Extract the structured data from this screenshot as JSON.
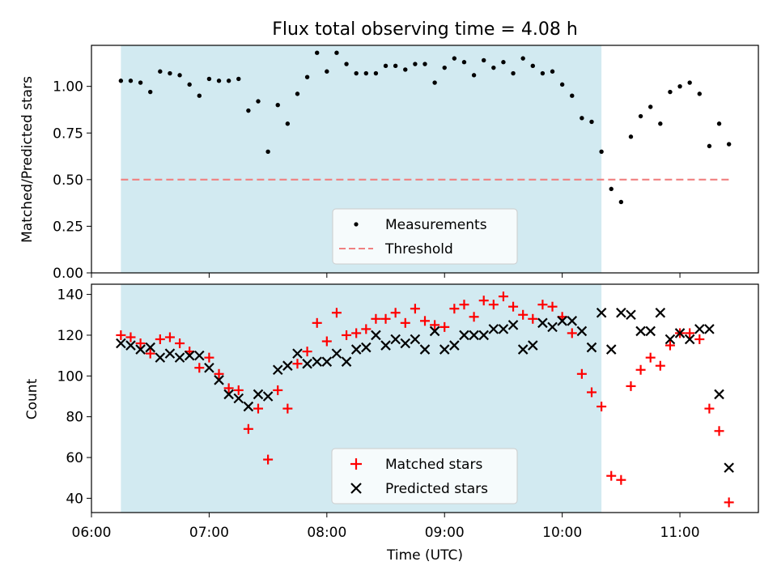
{
  "chart_data": [
    {
      "type": "scatter",
      "title": "Flux total observing time = 4.08 h",
      "xlabel": "",
      "ylabel": "Matched/Predicted stars",
      "ylim": [
        0.0,
        1.22
      ],
      "yticks": [
        "0.00",
        "0.25",
        "0.50",
        "0.75",
        "1.00"
      ],
      "shaded_interval": [
        "06:15",
        "10:20"
      ],
      "shaded_color": "#add8e6",
      "threshold": {
        "name": "Threshold",
        "value": 0.5,
        "x_start": "06:15",
        "x_end": "11:25",
        "color": "#f08080",
        "style": "dashed"
      },
      "legend": {
        "placement": "lower center",
        "entries": [
          "Measurements",
          "Threshold"
        ]
      },
      "series": [
        {
          "name": "Measurements",
          "marker": "dot",
          "color": "#000000",
          "points": [
            [
              "06:15",
              1.03
            ],
            [
              "06:20",
              1.03
            ],
            [
              "06:25",
              1.02
            ],
            [
              "06:30",
              0.97
            ],
            [
              "06:35",
              1.08
            ],
            [
              "06:40",
              1.07
            ],
            [
              "06:45",
              1.06
            ],
            [
              "06:50",
              1.01
            ],
            [
              "06:55",
              0.95
            ],
            [
              "07:00",
              1.04
            ],
            [
              "07:05",
              1.03
            ],
            [
              "07:10",
              1.03
            ],
            [
              "07:15",
              1.04
            ],
            [
              "07:20",
              0.87
            ],
            [
              "07:25",
              0.92
            ],
            [
              "07:30",
              0.65
            ],
            [
              "07:35",
              0.9
            ],
            [
              "07:40",
              0.8
            ],
            [
              "07:45",
              0.96
            ],
            [
              "07:50",
              1.05
            ],
            [
              "07:55",
              1.18
            ],
            [
              "08:00",
              1.08
            ],
            [
              "08:05",
              1.18
            ],
            [
              "08:10",
              1.12
            ],
            [
              "08:15",
              1.07
            ],
            [
              "08:20",
              1.07
            ],
            [
              "08:25",
              1.07
            ],
            [
              "08:30",
              1.11
            ],
            [
              "08:35",
              1.11
            ],
            [
              "08:40",
              1.09
            ],
            [
              "08:45",
              1.12
            ],
            [
              "08:50",
              1.12
            ],
            [
              "08:55",
              1.02
            ],
            [
              "09:00",
              1.1
            ],
            [
              "09:05",
              1.15
            ],
            [
              "09:10",
              1.13
            ],
            [
              "09:15",
              1.06
            ],
            [
              "09:20",
              1.14
            ],
            [
              "09:25",
              1.1
            ],
            [
              "09:30",
              1.13
            ],
            [
              "09:35",
              1.07
            ],
            [
              "09:40",
              1.15
            ],
            [
              "09:45",
              1.11
            ],
            [
              "09:50",
              1.07
            ],
            [
              "09:55",
              1.08
            ],
            [
              "10:00",
              1.01
            ],
            [
              "10:05",
              0.95
            ],
            [
              "10:10",
              0.83
            ],
            [
              "10:15",
              0.81
            ],
            [
              "10:20",
              0.65
            ],
            [
              "10:25",
              0.45
            ],
            [
              "10:30",
              0.38
            ],
            [
              "10:35",
              0.73
            ],
            [
              "10:40",
              0.84
            ],
            [
              "10:45",
              0.89
            ],
            [
              "10:50",
              0.8
            ],
            [
              "10:55",
              0.97
            ],
            [
              "11:00",
              1.0
            ],
            [
              "11:05",
              1.02
            ],
            [
              "11:10",
              0.96
            ],
            [
              "11:15",
              0.68
            ],
            [
              "11:20",
              0.8
            ],
            [
              "11:25",
              0.69
            ]
          ]
        }
      ]
    },
    {
      "type": "scatter",
      "title": "",
      "xlabel": "Time (UTC)",
      "ylabel": "Count",
      "ylim": [
        33,
        145
      ],
      "yticks": [
        "40",
        "60",
        "80",
        "100",
        "120",
        "140"
      ],
      "x_range": [
        "06:00",
        "11:40"
      ],
      "xticks": [
        "06:00",
        "07:00",
        "08:00",
        "09:00",
        "10:00",
        "11:00"
      ],
      "shaded_interval": [
        "06:15",
        "10:20"
      ],
      "shaded_color": "#add8e6",
      "legend": {
        "placement": "lower center",
        "entries": [
          "Matched stars",
          "Predicted stars"
        ]
      },
      "series": [
        {
          "name": "Matched stars",
          "marker": "plus",
          "color": "#ff0000",
          "points": [
            [
              "06:15",
              120
            ],
            [
              "06:20",
              119
            ],
            [
              "06:25",
              116
            ],
            [
              "06:30",
              111
            ],
            [
              "06:35",
              118
            ],
            [
              "06:40",
              119
            ],
            [
              "06:45",
              116
            ],
            [
              "06:50",
              112
            ],
            [
              "06:55",
              104
            ],
            [
              "07:00",
              109
            ],
            [
              "07:05",
              101
            ],
            [
              "07:10",
              94
            ],
            [
              "07:15",
              93
            ],
            [
              "07:20",
              74
            ],
            [
              "07:25",
              84
            ],
            [
              "07:30",
              59
            ],
            [
              "07:35",
              93
            ],
            [
              "07:40",
              84
            ],
            [
              "07:45",
              106
            ],
            [
              "07:50",
              112
            ],
            [
              "07:55",
              126
            ],
            [
              "08:00",
              117
            ],
            [
              "08:05",
              131
            ],
            [
              "08:10",
              120
            ],
            [
              "08:15",
              121
            ],
            [
              "08:20",
              123
            ],
            [
              "08:25",
              128
            ],
            [
              "08:30",
              128
            ],
            [
              "08:35",
              131
            ],
            [
              "08:40",
              126
            ],
            [
              "08:45",
              133
            ],
            [
              "08:50",
              127
            ],
            [
              "08:55",
              125
            ],
            [
              "09:00",
              124
            ],
            [
              "09:05",
              133
            ],
            [
              "09:10",
              135
            ],
            [
              "09:15",
              129
            ],
            [
              "09:20",
              137
            ],
            [
              "09:25",
              135
            ],
            [
              "09:30",
              139
            ],
            [
              "09:35",
              134
            ],
            [
              "09:40",
              130
            ],
            [
              "09:45",
              128
            ],
            [
              "09:50",
              135
            ],
            [
              "09:55",
              134
            ],
            [
              "10:00",
              129
            ],
            [
              "10:05",
              121
            ],
            [
              "10:10",
              101
            ],
            [
              "10:15",
              92
            ],
            [
              "10:20",
              85
            ],
            [
              "10:25",
              51
            ],
            [
              "10:30",
              49
            ],
            [
              "10:35",
              95
            ],
            [
              "10:40",
              103
            ],
            [
              "10:45",
              109
            ],
            [
              "10:50",
              105
            ],
            [
              "10:55",
              115
            ],
            [
              "11:00",
              121
            ],
            [
              "11:05",
              121
            ],
            [
              "11:10",
              118
            ],
            [
              "11:15",
              84
            ],
            [
              "11:20",
              73
            ],
            [
              "11:25",
              38
            ]
          ]
        },
        {
          "name": "Predicted stars",
          "marker": "x",
          "color": "#000000",
          "points": [
            [
              "06:15",
              116
            ],
            [
              "06:20",
              115
            ],
            [
              "06:25",
              113
            ],
            [
              "06:30",
              114
            ],
            [
              "06:35",
              109
            ],
            [
              "06:40",
              111
            ],
            [
              "06:45",
              109
            ],
            [
              "06:50",
              110
            ],
            [
              "06:55",
              110
            ],
            [
              "07:00",
              104
            ],
            [
              "07:05",
              98
            ],
            [
              "07:10",
              91
            ],
            [
              "07:15",
              89
            ],
            [
              "07:20",
              85
            ],
            [
              "07:25",
              91
            ],
            [
              "07:30",
              90
            ],
            [
              "07:35",
              103
            ],
            [
              "07:40",
              105
            ],
            [
              "07:45",
              111
            ],
            [
              "07:50",
              106
            ],
            [
              "07:55",
              107
            ],
            [
              "08:00",
              107
            ],
            [
              "08:05",
              111
            ],
            [
              "08:10",
              107
            ],
            [
              "08:15",
              113
            ],
            [
              "08:20",
              114
            ],
            [
              "08:25",
              120
            ],
            [
              "08:30",
              115
            ],
            [
              "08:35",
              118
            ],
            [
              "08:40",
              116
            ],
            [
              "08:45",
              118
            ],
            [
              "08:50",
              113
            ],
            [
              "08:55",
              122
            ],
            [
              "09:00",
              113
            ],
            [
              "09:05",
              115
            ],
            [
              "09:10",
              120
            ],
            [
              "09:15",
              120
            ],
            [
              "09:20",
              120
            ],
            [
              "09:25",
              123
            ],
            [
              "09:30",
              123
            ],
            [
              "09:35",
              125
            ],
            [
              "09:40",
              113
            ],
            [
              "09:45",
              115
            ],
            [
              "09:50",
              126
            ],
            [
              "09:55",
              124
            ],
            [
              "10:00",
              127
            ],
            [
              "10:05",
              127
            ],
            [
              "10:10",
              122
            ],
            [
              "10:15",
              114
            ],
            [
              "10:20",
              131
            ],
            [
              "10:25",
              113
            ],
            [
              "10:30",
              131
            ],
            [
              "10:35",
              130
            ],
            [
              "10:40",
              122
            ],
            [
              "10:45",
              122
            ],
            [
              "10:50",
              131
            ],
            [
              "10:55",
              118
            ],
            [
              "11:00",
              121
            ],
            [
              "11:05",
              118
            ],
            [
              "11:10",
              123
            ],
            [
              "11:15",
              123
            ],
            [
              "11:20",
              91
            ],
            [
              "11:25",
              55
            ]
          ]
        }
      ]
    }
  ]
}
